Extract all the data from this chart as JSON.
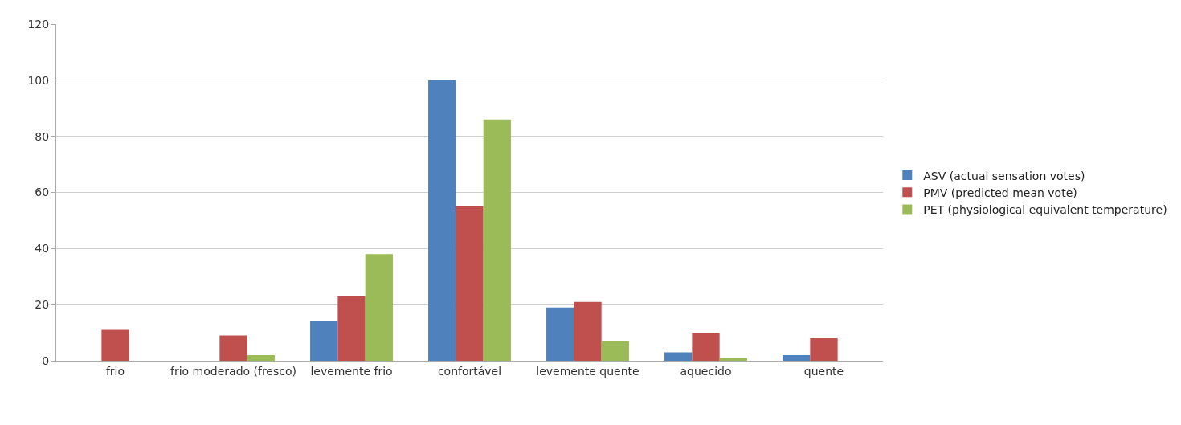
{
  "chart_data": {
    "type": "bar",
    "categories": [
      "frio",
      "frio moderado (fresco)",
      "levemente frio",
      "confortável",
      "levemente quente",
      "aquecido",
      "quente"
    ],
    "series": [
      {
        "name": "ASV (actual sensation votes)",
        "color": "#4f81bd",
        "values": [
          0,
          0,
          14,
          100,
          19,
          3,
          2
        ]
      },
      {
        "name": "PMV (predicted mean vote)",
        "color": "#c0504d",
        "values": [
          11,
          9,
          23,
          55,
          21,
          10,
          8
        ]
      },
      {
        "name": "PET (physiological equivalent temperature)",
        "color": "#9bbb59",
        "values": [
          0,
          2,
          38,
          86,
          7,
          1,
          0
        ]
      }
    ],
    "ylim": [
      0,
      120
    ],
    "yticks": [
      0,
      20,
      40,
      60,
      80,
      100,
      120
    ],
    "grid": "y",
    "legend": "right"
  }
}
